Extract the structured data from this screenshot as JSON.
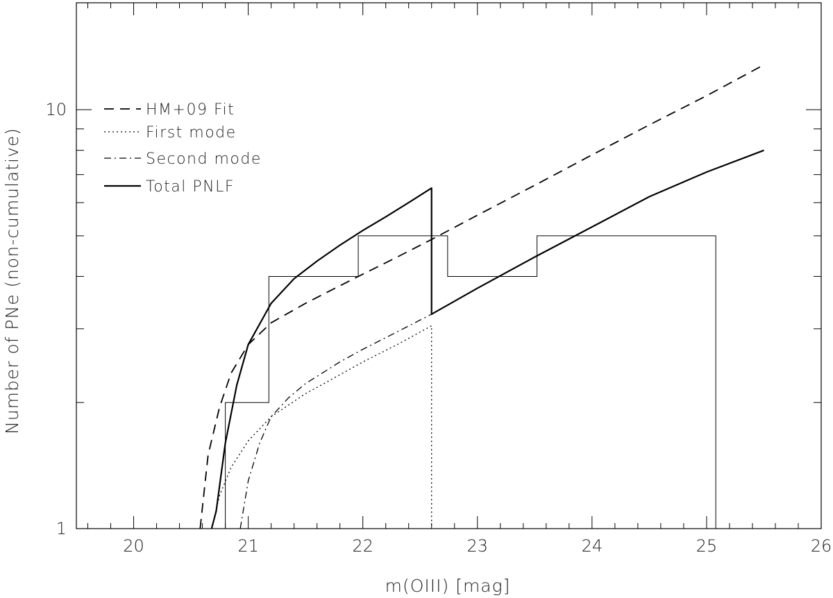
{
  "chart_data": {
    "type": "line",
    "xlabel": "m(OIII) [mag]",
    "ylabel": "Number of PNe (non-cumulative)",
    "xlim": [
      19.5,
      26
    ],
    "ylim": [
      1,
      18
    ],
    "yscale": "log",
    "x_ticks": [
      20,
      21,
      22,
      23,
      24,
      25,
      26
    ],
    "y_ticks": [
      1,
      10
    ],
    "grid": false,
    "legend_position": "top-left",
    "series": [
      {
        "name": "HM+09 Fit",
        "style": "dashed",
        "x": [
          20.58,
          20.65,
          20.75,
          20.85,
          21.0,
          21.2,
          21.5,
          21.8,
          22.0,
          22.3,
          22.6,
          23.0,
          23.5,
          24.0,
          24.5,
          25.0,
          25.5
        ],
        "y": [
          1.0,
          1.5,
          1.95,
          2.35,
          2.75,
          3.1,
          3.45,
          3.8,
          4.05,
          4.45,
          4.9,
          5.6,
          6.6,
          7.8,
          9.2,
          10.8,
          12.8
        ]
      },
      {
        "name": "First mode",
        "style": "dotted",
        "x": [
          20.68,
          20.75,
          20.85,
          21.0,
          21.2,
          21.5,
          21.8,
          22.0,
          22.3,
          22.6,
          22.6
        ],
        "y": [
          1.0,
          1.2,
          1.4,
          1.62,
          1.85,
          2.1,
          2.33,
          2.5,
          2.75,
          3.05,
          1.0
        ]
      },
      {
        "name": "Second mode",
        "style": "dashdot",
        "x": [
          20.93,
          21.0,
          21.1,
          21.2,
          21.35,
          21.5,
          21.8,
          22.0,
          22.3,
          22.6
        ],
        "y": [
          1.0,
          1.3,
          1.6,
          1.85,
          2.05,
          2.22,
          2.5,
          2.68,
          2.95,
          3.25
        ]
      },
      {
        "name": "Total PNLF",
        "style": "solid",
        "x": [
          20.68,
          20.72,
          20.8,
          20.9,
          21.0,
          21.2,
          21.4,
          21.6,
          21.8,
          22.0,
          22.2,
          22.4,
          22.6,
          22.6,
          23.0,
          23.5,
          24.0,
          24.5,
          25.0,
          25.5
        ],
        "y": [
          1.0,
          1.1,
          1.6,
          2.2,
          2.75,
          3.45,
          3.95,
          4.35,
          4.75,
          5.15,
          5.55,
          6.0,
          6.5,
          3.25,
          3.75,
          4.45,
          5.25,
          6.2,
          7.1,
          8.0
        ]
      }
    ],
    "histogram": {
      "style": "steps",
      "edges": [
        20.8,
        21.18,
        21.96,
        22.74,
        23.52,
        25.08
      ],
      "counts": [
        2,
        4,
        5,
        4,
        5
      ]
    }
  }
}
